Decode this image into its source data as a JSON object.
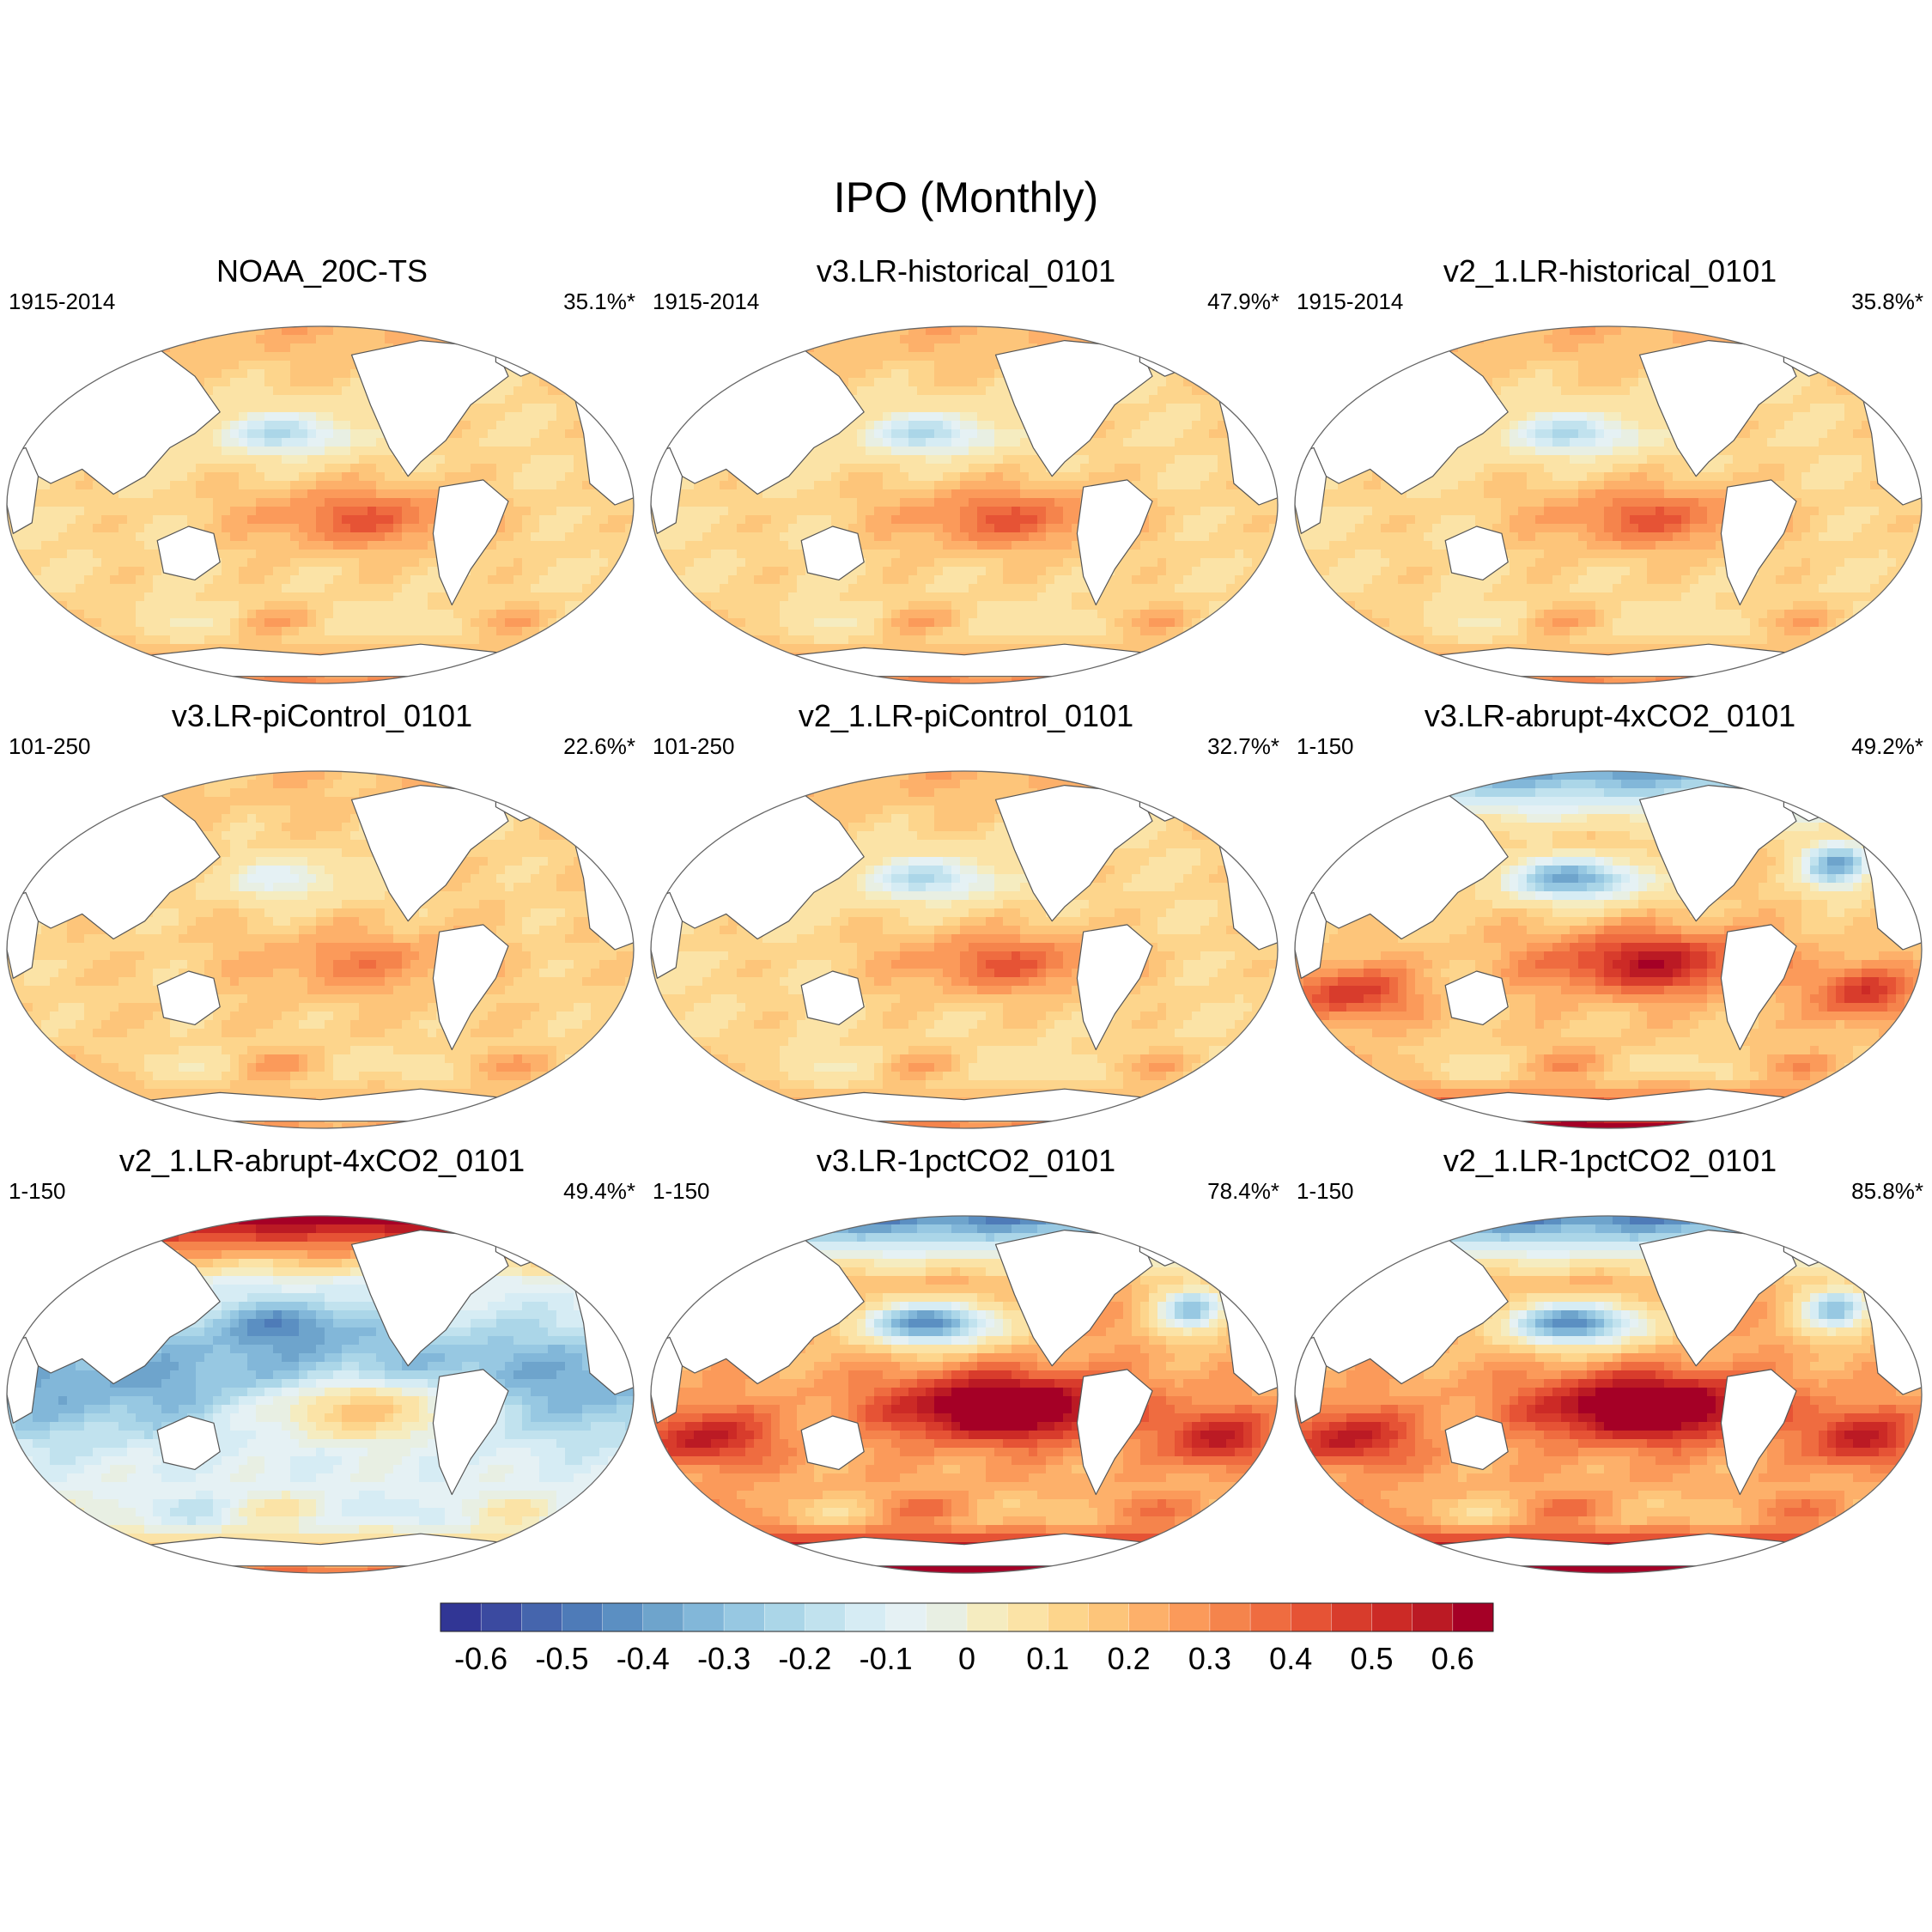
{
  "figure": {
    "title": "IPO (Monthly)"
  },
  "chart_data": {
    "type": "heatmap",
    "projection": "Robinson (Pacific-centred)",
    "panels": [
      {
        "name": "NOAA_20C-TS",
        "period": "1915-2014",
        "variance": "35.1%*",
        "pattern": "moderate"
      },
      {
        "name": "v3.LR-historical_0101",
        "period": "1915-2014",
        "variance": "47.9%*",
        "pattern": "moderate"
      },
      {
        "name": "v2_1.LR-historical_0101",
        "period": "1915-2014",
        "variance": "35.8%*",
        "pattern": "moderate"
      },
      {
        "name": "v3.LR-piControl_0101",
        "period": "101-250",
        "variance": "22.6%*",
        "pattern": "weak"
      },
      {
        "name": "v2_1.LR-piControl_0101",
        "period": "101-250",
        "variance": "32.7%*",
        "pattern": "moderate"
      },
      {
        "name": "v3.LR-abrupt-4xCO2_0101",
        "period": "1-150",
        "variance": "49.2%*",
        "pattern": "strong"
      },
      {
        "name": "v2_1.LR-abrupt-4xCO2_0101",
        "period": "1-150",
        "variance": "49.4%*",
        "pattern": "arctic"
      },
      {
        "name": "v3.LR-1pctCO2_0101",
        "period": "1-150",
        "variance": "78.4%*",
        "pattern": "intense"
      },
      {
        "name": "v2_1.LR-1pctCO2_0101",
        "period": "1-150",
        "variance": "85.8%*",
        "pattern": "intense"
      }
    ],
    "colorbar": {
      "levels": [
        -0.7,
        -0.65,
        -0.6,
        -0.55,
        -0.5,
        -0.45,
        -0.4,
        -0.35,
        -0.3,
        -0.25,
        -0.2,
        -0.15,
        -0.1,
        -0.05,
        0.05,
        0.1,
        0.15,
        0.2,
        0.25,
        0.3,
        0.35,
        0.4,
        0.45,
        0.5,
        0.55,
        0.6,
        0.65
      ],
      "tick_values": [
        -0.6,
        -0.5,
        -0.4,
        -0.3,
        -0.2,
        -0.1,
        0,
        0.1,
        0.2,
        0.3,
        0.4,
        0.5,
        0.6
      ],
      "tick_labels": [
        "-0.6",
        "-0.5",
        "-0.4",
        "-0.3",
        "-0.2",
        "-0.1",
        "0",
        "0.1",
        "0.2",
        "0.3",
        "0.4",
        "0.5",
        "0.6"
      ],
      "colors": [
        "#313695",
        "#3b4aa0",
        "#4565ad",
        "#4e7bb8",
        "#5b8fc2",
        "#6ea4cc",
        "#82b7d9",
        "#97c8e2",
        "#abd6e8",
        "#c1e2ee",
        "#d6ecf4",
        "#e5f1f4",
        "#e8efe3",
        "#f5ecc0",
        "#fbe3a6",
        "#fdd58c",
        "#fdc57a",
        "#fdb06a",
        "#fb9a5a",
        "#f5844c",
        "#ef6c40",
        "#e65335",
        "#d83c2c",
        "#cc2a26",
        "#bb1a24",
        "#a50026"
      ]
    }
  }
}
